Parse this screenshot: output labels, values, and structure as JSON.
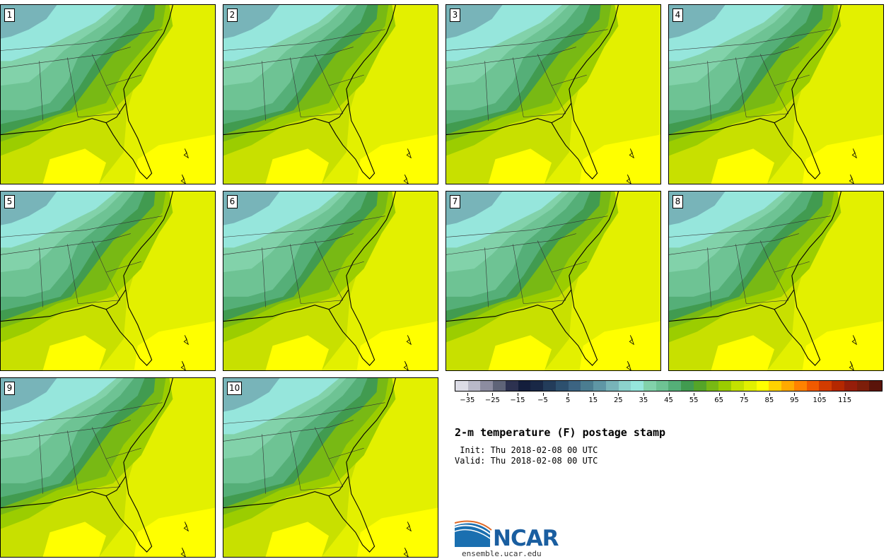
{
  "panels": [
    {
      "label": "1"
    },
    {
      "label": "2"
    },
    {
      "label": "3"
    },
    {
      "label": "4"
    },
    {
      "label": "5"
    },
    {
      "label": "6"
    },
    {
      "label": "7"
    },
    {
      "label": "8"
    },
    {
      "label": "9"
    },
    {
      "label": "10"
    }
  ],
  "colorbar": {
    "colors": [
      "#dcdce6",
      "#b9b9c8",
      "#8c8ca0",
      "#5f6478",
      "#2d3250",
      "#141e3c",
      "#192846",
      "#233c5a",
      "#2d506e",
      "#3c6482",
      "#4b7d91",
      "#5f96a5",
      "#78b4b9",
      "#8cd2cd",
      "#96e6dc",
      "#82d2aa",
      "#6ec394",
      "#55af78",
      "#419b50",
      "#55a528",
      "#78b914",
      "#9bcd00",
      "#c3e100",
      "#e1f000",
      "#ffff00",
      "#ffd200",
      "#ffaa00",
      "#ff8200",
      "#f05a00",
      "#d23c00",
      "#b42800",
      "#961e0a",
      "#7d1e0a",
      "#5a140a"
    ],
    "ticks": [
      "−35",
      "−25",
      "−15",
      "−5",
      "5",
      "15",
      "25",
      "35",
      "45",
      "55",
      "65",
      "75",
      "85",
      "95",
      "105",
      "115"
    ]
  },
  "title": "2-m temperature (F) postage stamp",
  "init": " Init: Thu 2018-02-08 00 UTC",
  "valid": "Valid: Thu 2018-02-08 00 UTC",
  "logo": {
    "text": "NCAR",
    "site": "ensemble.ucar.edu"
  }
}
